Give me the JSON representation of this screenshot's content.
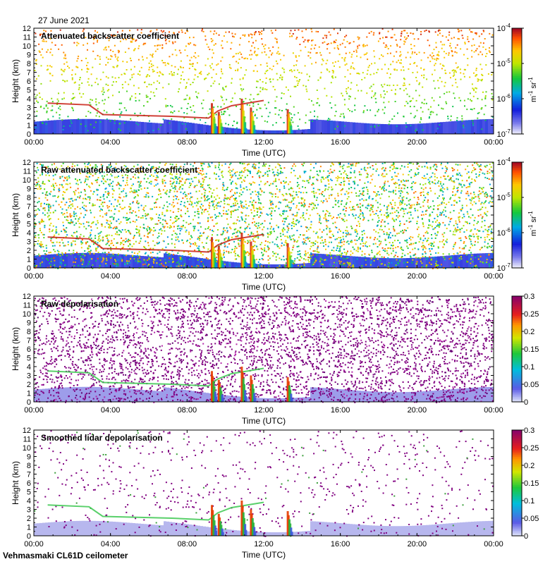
{
  "header": {
    "date": "27 June 2021"
  },
  "footer": {
    "instrument": "Vehmasmaki CL61D ceilometer"
  },
  "chart_data": [
    {
      "type": "heatmap",
      "title": "Attenuated backscatter coefficient",
      "xlabel": "Time (UTC)",
      "ylabel": "Height (km)",
      "x_ticks": [
        "00:00",
        "04:00",
        "08:00",
        "12:00",
        "16:00",
        "20:00",
        "00:00"
      ],
      "y_ticks": [
        "0",
        "1",
        "2",
        "3",
        "4",
        "5",
        "6",
        "7",
        "8",
        "9",
        "10",
        "11",
        "12"
      ],
      "ylim": [
        0,
        12
      ],
      "colorbar": {
        "scale": "log",
        "range": [
          1e-07,
          0.0001
        ],
        "tick_labels": [
          {
            "base": "10",
            "exp": "-4"
          },
          {
            "base": "10",
            "exp": "-5"
          },
          {
            "base": "10",
            "exp": "-6"
          },
          {
            "base": "10",
            "exp": "-7"
          }
        ],
        "unit": {
          "a": "m",
          "a_exp": "-1",
          "b": "sr",
          "b_exp": "-1"
        }
      },
      "noise_level": "low"
    },
    {
      "type": "heatmap",
      "title": "Raw attenuated backscatter coefficient",
      "xlabel": "Time (UTC)",
      "ylabel": "Height (km)",
      "x_ticks": [
        "00:00",
        "04:00",
        "08:00",
        "12:00",
        "16:00",
        "20:00",
        "00:00"
      ],
      "y_ticks": [
        "0",
        "1",
        "2",
        "3",
        "4",
        "5",
        "6",
        "7",
        "8",
        "9",
        "10",
        "11",
        "12"
      ],
      "ylim": [
        0,
        12
      ],
      "colorbar": {
        "scale": "log",
        "range": [
          1e-07,
          0.0001
        ],
        "tick_labels": [
          {
            "base": "10",
            "exp": "-4"
          },
          {
            "base": "10",
            "exp": "-5"
          },
          {
            "base": "10",
            "exp": "-6"
          },
          {
            "base": "10",
            "exp": "-7"
          }
        ],
        "unit": {
          "a": "m",
          "a_exp": "-1",
          "b": "sr",
          "b_exp": "-1"
        }
      },
      "noise_level": "high"
    },
    {
      "type": "heatmap",
      "title": "Raw depolarisation",
      "xlabel": "Time (UTC)",
      "ylabel": "Height (km)",
      "x_ticks": [
        "00:00",
        "04:00",
        "08:00",
        "12:00",
        "16:00",
        "20:00",
        "00:00"
      ],
      "y_ticks": [
        "0",
        "1",
        "2",
        "3",
        "4",
        "5",
        "6",
        "7",
        "8",
        "9",
        "10",
        "11",
        "12"
      ],
      "ylim": [
        0,
        12
      ],
      "colorbar": {
        "scale": "linear",
        "range": [
          0,
          0.3
        ],
        "tick_labels": [
          "0.3",
          "0.25",
          "0.2",
          "0.15",
          "0.1",
          "0.05",
          "0"
        ]
      },
      "noise_level": "dense-purple"
    },
    {
      "type": "heatmap",
      "title": "Smoothed lidar depolarisation",
      "xlabel": "Time (UTC)",
      "ylabel": "Height (km)",
      "x_ticks": [
        "00:00",
        "04:00",
        "08:00",
        "12:00",
        "16:00",
        "20:00",
        "00:00"
      ],
      "y_ticks": [
        "0",
        "1",
        "2",
        "3",
        "4",
        "5",
        "6",
        "7",
        "8",
        "9",
        "10",
        "11",
        "12"
      ],
      "ylim": [
        0,
        12
      ],
      "colorbar": {
        "scale": "linear",
        "range": [
          0,
          0.3
        ],
        "tick_labels": [
          "0.3",
          "0.25",
          "0.2",
          "0.15",
          "0.1",
          "0.05",
          "0"
        ]
      },
      "noise_level": "sparse-purple"
    }
  ]
}
